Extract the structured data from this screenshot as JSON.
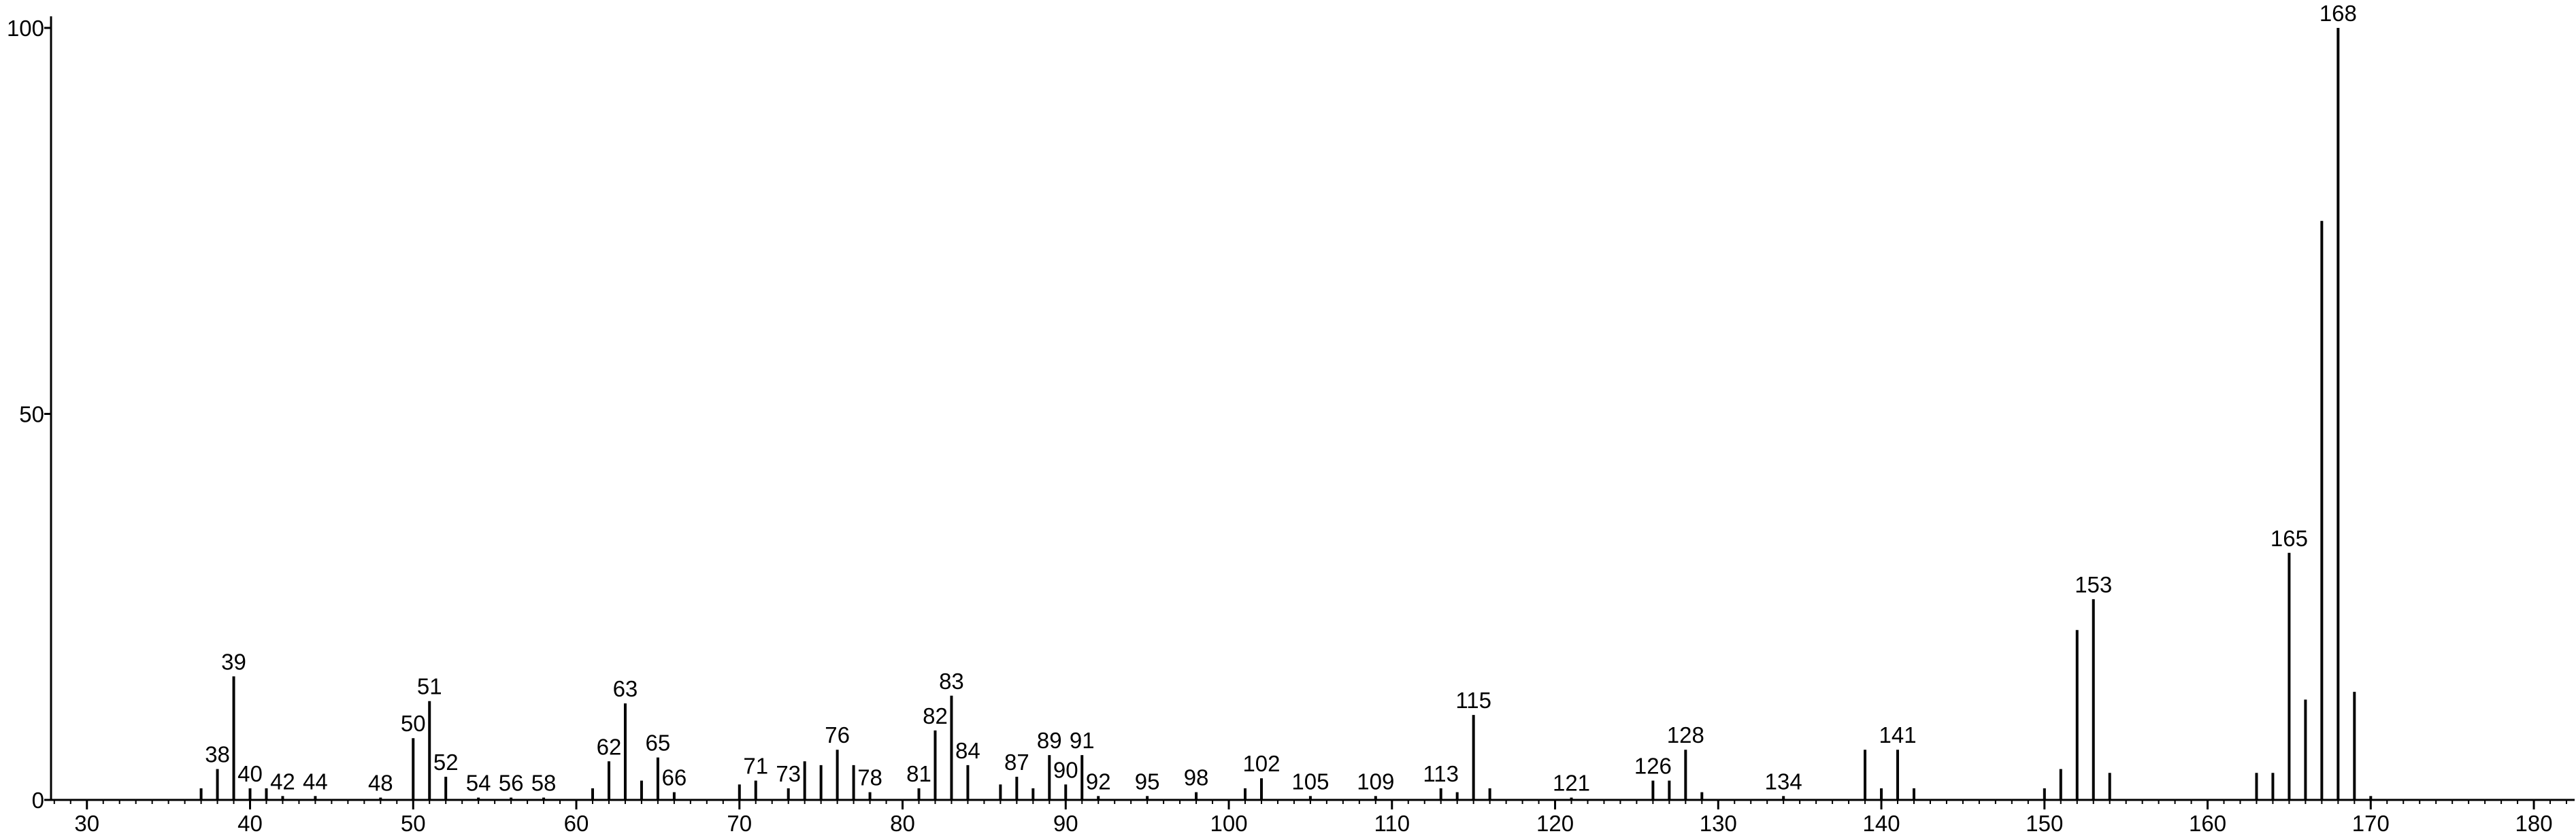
{
  "chart_data": {
    "type": "spectrum",
    "x": [
      37,
      38,
      39,
      40,
      41,
      42,
      44,
      48,
      50,
      51,
      52,
      54,
      56,
      58,
      61,
      62,
      63,
      64,
      65,
      66,
      70,
      71,
      73,
      74,
      75,
      76,
      77,
      78,
      81,
      82,
      83,
      84,
      86,
      87,
      88,
      89,
      90,
      91,
      92,
      95,
      98,
      101,
      102,
      105,
      109,
      113,
      114,
      115,
      116,
      121,
      126,
      127,
      128,
      129,
      134,
      139,
      140,
      141,
      142,
      150,
      151,
      152,
      153,
      154,
      163,
      164,
      165,
      166,
      167,
      168,
      169,
      170
    ],
    "values": [
      1.5,
      4,
      16,
      1.5,
      1.5,
      0.5,
      0.5,
      0.3,
      8,
      12.8,
      3,
      0.3,
      0.3,
      0.3,
      1.5,
      5,
      12.5,
      2.5,
      5.5,
      1,
      2,
      2.5,
      1.5,
      5,
      4.5,
      6.5,
      4.5,
      1,
      1.5,
      9,
      13.5,
      4.5,
      2,
      3,
      1.5,
      5.8,
      2,
      5.8,
      0.5,
      0.5,
      1,
      1.5,
      2.8,
      0.5,
      0.5,
      1.5,
      1,
      11,
      1.5,
      0.3,
      2.5,
      2.5,
      6.5,
      1,
      0.5,
      6.5,
      1.5,
      6.5,
      1.5,
      1.5,
      4,
      22,
      26,
      3.5,
      3.5,
      3.5,
      32,
      13,
      75,
      100,
      14,
      0.5
    ],
    "labels": [
      null,
      38,
      39,
      40,
      null,
      42,
      44,
      48,
      50,
      51,
      52,
      54,
      56,
      58,
      null,
      62,
      63,
      null,
      65,
      66,
      null,
      71,
      73,
      null,
      null,
      76,
      null,
      78,
      81,
      82,
      83,
      84,
      null,
      87,
      null,
      89,
      90,
      91,
      92,
      95,
      98,
      null,
      102,
      105,
      109,
      113,
      null,
      115,
      null,
      121,
      126,
      null,
      128,
      null,
      134,
      null,
      null,
      141,
      null,
      null,
      null,
      null,
      153,
      null,
      null,
      null,
      165,
      null,
      null,
      168,
      null,
      null
    ],
    "color": "#000000",
    "xlim": [
      27.8,
      182.5
    ],
    "xticks": [
      30,
      40,
      50,
      60,
      70,
      80,
      90,
      100,
      110,
      120,
      130,
      140,
      150,
      160,
      170,
      180
    ],
    "ylim": [
      0,
      101.5
    ],
    "yticks": [
      0,
      50,
      100
    ]
  }
}
